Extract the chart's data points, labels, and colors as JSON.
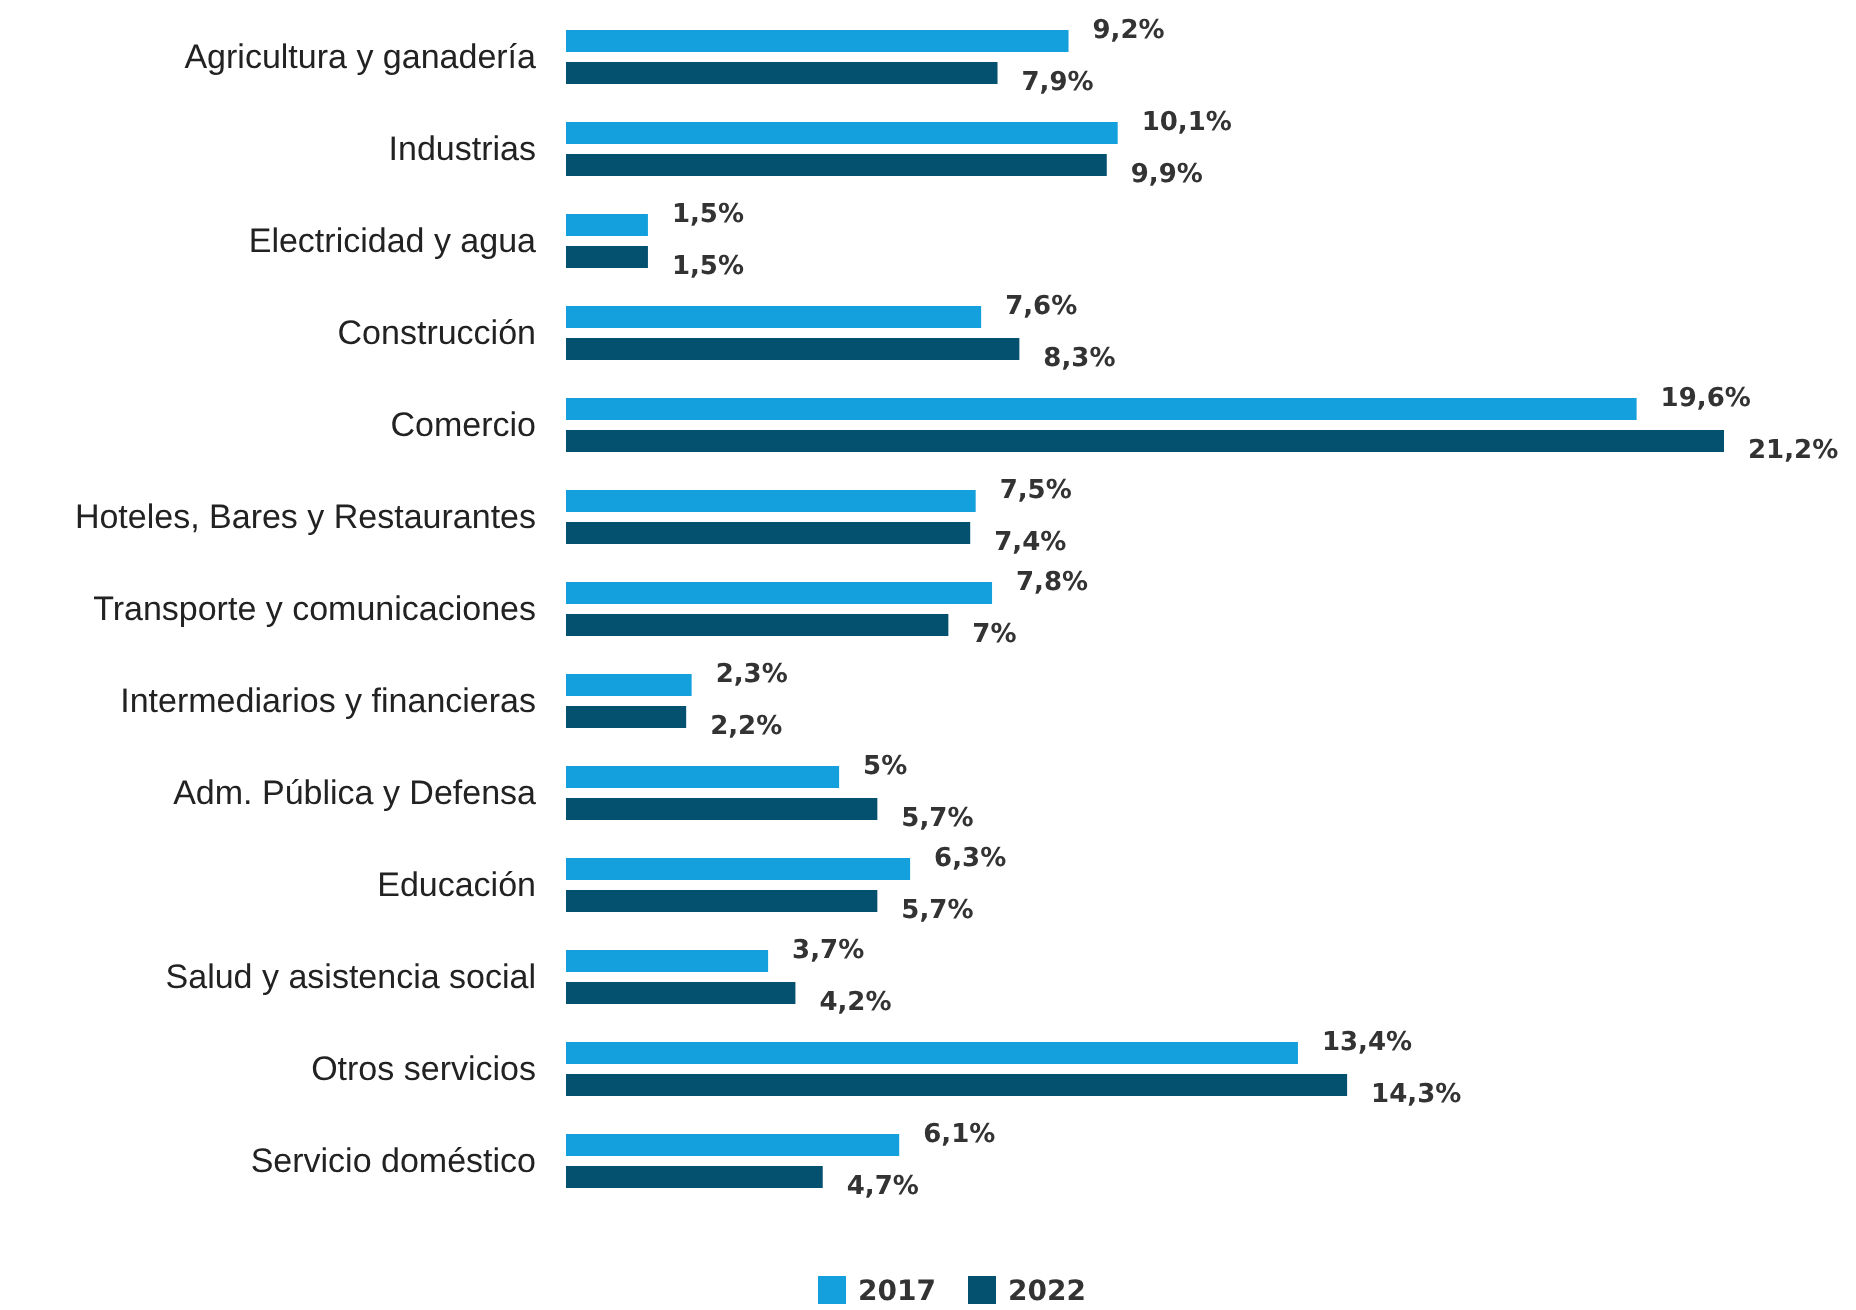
{
  "chart_data": {
    "type": "bar",
    "orientation": "horizontal",
    "legend": "bottom",
    "categories": [
      "Agricultura y ganadería",
      "Industrias",
      "Electricidad y agua",
      "Construcción",
      "Comercio",
      "Hoteles, Bares y Restaurantes",
      "Transporte y comunicaciones",
      "Intermediarios y financieras",
      "Adm. Pública y Defensa",
      "Educación",
      "Salud y asistencia social",
      "Otros servicios",
      "Servicio doméstico"
    ],
    "series": [
      {
        "name": "2017",
        "color": "#14a0dc",
        "values": [
          9.2,
          10.1,
          1.5,
          7.6,
          19.6,
          7.5,
          7.8,
          2.3,
          5,
          6.3,
          3.7,
          13.4,
          6.1
        ],
        "value_labels": [
          "9,2%",
          "10,1%",
          "1,5%",
          "7,6%",
          "19,6%",
          "7,5%",
          "7,8%",
          "2,3%",
          "5%",
          "6,3%",
          "3,7%",
          "13,4%",
          "6,1%"
        ]
      },
      {
        "name": "2022",
        "color": "#04506f",
        "values": [
          7.9,
          9.9,
          1.5,
          8.3,
          21.2,
          7.4,
          7,
          2.2,
          5.7,
          5.7,
          4.2,
          14.3,
          4.7
        ],
        "value_labels": [
          "7,9%",
          "9,9%",
          "1,5%",
          "8,3%",
          "21,2%",
          "7,4%",
          "7%",
          "2,2%",
          "5,7%",
          "5,7%",
          "4,2%",
          "14,3%",
          "4,7%"
        ]
      }
    ]
  }
}
